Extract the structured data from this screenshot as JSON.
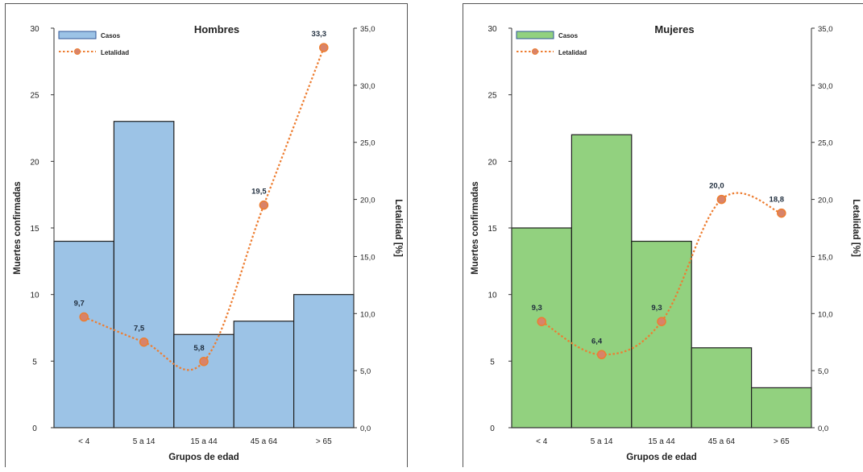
{
  "chart_data": [
    {
      "type": "bar",
      "title": "Hombres",
      "xlabel": "Grupos de edad",
      "ylabel": "Muertes confirmadas",
      "y2label": "Letalidad [%]",
      "categories": [
        "< 4",
        "5 a 14",
        "15 a 44",
        "45 a 64",
        "> 65"
      ],
      "ylim": [
        0,
        30
      ],
      "y2lim": [
        0,
        35
      ],
      "yticks": [
        "0",
        "5",
        "10",
        "15",
        "20",
        "25",
        "30"
      ],
      "y2ticks": [
        "0,0",
        "5,0",
        "10,0",
        "15,0",
        "20,0",
        "25,0",
        "30,0",
        "35,0"
      ],
      "series": [
        {
          "name": "Casos",
          "type": "bar",
          "axis": "left",
          "values": [
            14,
            23,
            7,
            8,
            10
          ]
        },
        {
          "name": "Letalidad",
          "type": "line",
          "axis": "right",
          "values": [
            9.7,
            7.5,
            5.8,
            19.5,
            33.3
          ],
          "labels": [
            "9,7",
            "7,5",
            "5,8",
            "19,5",
            "33,3"
          ]
        }
      ],
      "colors": {
        "bar_fill": "#9cc3e6",
        "bar_stroke": "#1f1f1f",
        "line": "#ed7d31",
        "marker_fill": "#d8836a"
      },
      "legend": "top-left",
      "grid": false
    },
    {
      "type": "bar",
      "title": "Mujeres",
      "xlabel": "Grupos de edad",
      "ylabel": "Muertes confirmadas",
      "y2label": "Letalidad [%]",
      "categories": [
        "< 4",
        "5 a 14",
        "15 a 44",
        "45 a 64",
        "> 65"
      ],
      "ylim": [
        0,
        30
      ],
      "y2lim": [
        0,
        35
      ],
      "yticks": [
        "0",
        "5",
        "10",
        "15",
        "20",
        "25",
        "30"
      ],
      "y2ticks": [
        "0,0",
        "5,0",
        "10,0",
        "15,0",
        "20,0",
        "25,0",
        "30,0",
        "35,0"
      ],
      "series": [
        {
          "name": "Casos",
          "type": "bar",
          "axis": "left",
          "values": [
            15,
            22,
            14,
            6,
            3
          ]
        },
        {
          "name": "Letalidad",
          "type": "line",
          "axis": "right",
          "values": [
            9.3,
            6.4,
            9.3,
            20.0,
            18.8
          ],
          "labels": [
            "9,3",
            "6,4",
            "9,3",
            "20,0",
            "18,8"
          ]
        }
      ],
      "colors": {
        "bar_fill": "#92d17f",
        "bar_stroke": "#1f1f1f",
        "line": "#ed7d31",
        "marker_fill": "#d8836a"
      },
      "legend": "top-left",
      "grid": false
    }
  ]
}
